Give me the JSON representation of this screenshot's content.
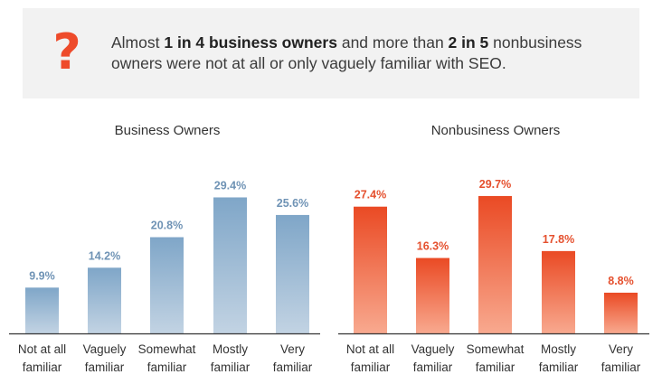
{
  "banner": {
    "icon": "question-mark-icon",
    "text_part1": "Almost ",
    "bold1": "1 in 4 business owners",
    "text_part2": " and more than ",
    "bold2": "2 in 5",
    "text_part3": " nonbusiness owners were not at all or only vaguely familiar with SEO."
  },
  "chart_data": [
    {
      "type": "bar",
      "title": "Business Owners",
      "categories": [
        "Not at all familiar",
        "Vaguely familiar",
        "Somewhat familiar",
        "Mostly familiar",
        "Very familiar"
      ],
      "category_lines": [
        [
          "Not at all",
          "familiar"
        ],
        [
          "Vaguely",
          "familiar"
        ],
        [
          "Somewhat",
          "familiar"
        ],
        [
          "Mostly",
          "familiar"
        ],
        [
          "Very",
          "familiar"
        ]
      ],
      "values": [
        9.9,
        14.2,
        20.8,
        29.4,
        25.6
      ],
      "labels": [
        "9.9%",
        "14.2%",
        "20.8%",
        "29.4%",
        "25.6%"
      ],
      "ylim": [
        0,
        30
      ],
      "grid": false,
      "colors": {
        "bar_top": "#7fa6c8",
        "bar_bottom": "#c2d3e3",
        "label": "#6f93b5",
        "axis": "#333333"
      }
    },
    {
      "type": "bar",
      "title": "Nonbusiness Owners",
      "categories": [
        "Not at all familiar",
        "Vaguely familiar",
        "Somewhat familiar",
        "Mostly familiar",
        "Very familiar"
      ],
      "category_lines": [
        [
          "Not at all",
          "familiar"
        ],
        [
          "Vaguely",
          "familiar"
        ],
        [
          "Somewhat",
          "familiar"
        ],
        [
          "Mostly",
          "familiar"
        ],
        [
          "Very",
          "familiar"
        ]
      ],
      "values": [
        27.4,
        16.3,
        29.7,
        17.8,
        8.8
      ],
      "labels": [
        "27.4%",
        "16.3%",
        "29.7%",
        "17.8%",
        "8.8%"
      ],
      "ylim": [
        0,
        30
      ],
      "grid": false,
      "colors": {
        "bar_top": "#ea4a24",
        "bar_bottom": "#f8a98f",
        "label": "#e5502e",
        "axis": "#333333"
      }
    }
  ]
}
